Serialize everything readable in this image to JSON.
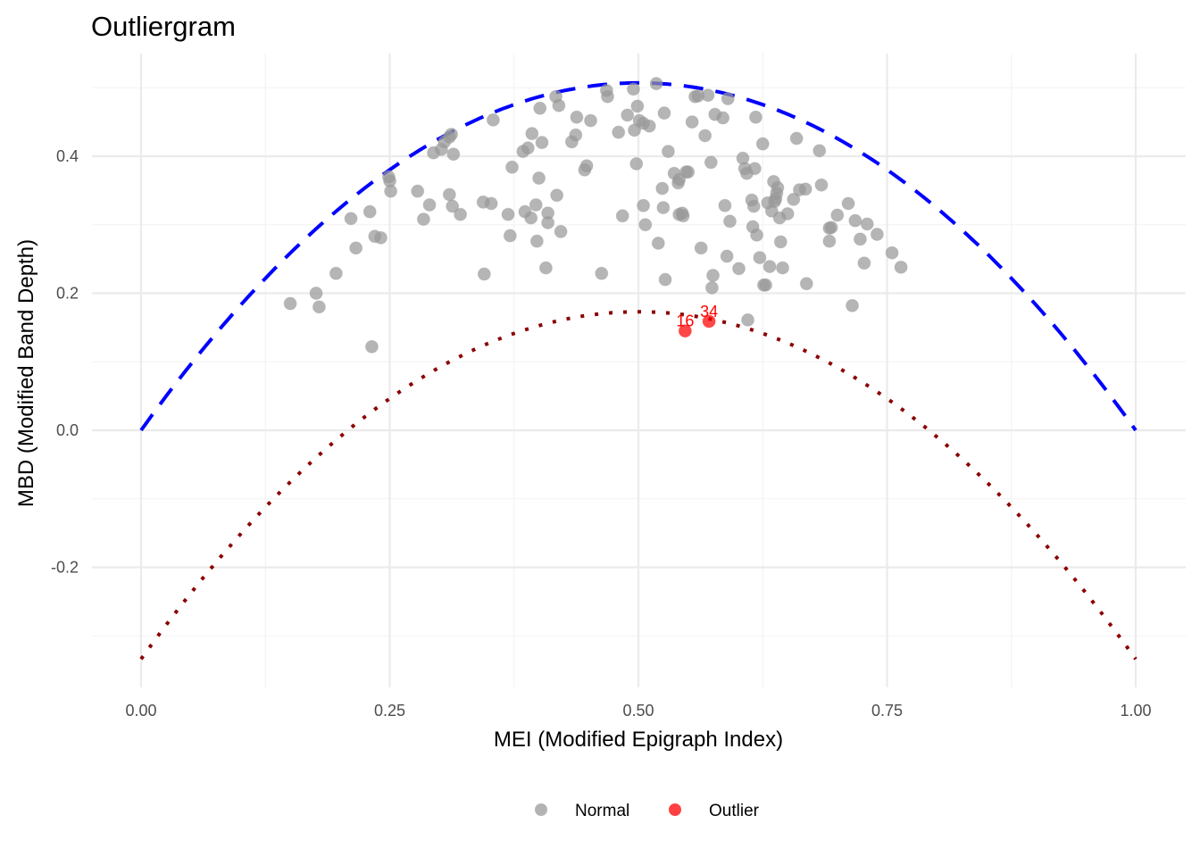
{
  "chart_data": {
    "type": "scatter",
    "title": "Outliergram",
    "xlabel": "MEI (Modified Epigraph Index)",
    "ylabel": "MBD (Modified Band Depth)",
    "xlim": [
      -0.05,
      1.05
    ],
    "ylim": [
      -0.37,
      0.54
    ],
    "x_ticks": [
      0.0,
      0.25,
      0.5,
      0.75,
      1.0
    ],
    "x_tick_labels": [
      "0.00",
      "0.25",
      "0.50",
      "0.75",
      "1.00"
    ],
    "y_ticks": [
      -0.2,
      0.0,
      0.2,
      0.4
    ],
    "y_tick_labels": [
      "-0.2",
      "0.0",
      "0.2",
      "0.4"
    ],
    "grid": true,
    "legend_position": "bottom",
    "legend": [
      {
        "label": "Normal",
        "color": "#999999"
      },
      {
        "label": "Outlier",
        "color": "#ff0000"
      }
    ],
    "curves": [
      {
        "name": "upper-parabola",
        "style": "dashed",
        "color": "#0000ff",
        "formula": "a0 + a1*t + a2*t^2",
        "coefficients": [
          0.0,
          2.028,
          -2.028
        ]
      },
      {
        "name": "lower-parabola",
        "style": "dotted",
        "color": "#8b0000",
        "formula": "a0 + a1*t + a2*t^2",
        "coefficients": [
          -0.334,
          2.028,
          -2.028
        ]
      }
    ],
    "series": [
      {
        "name": "Normal",
        "color": "#999999",
        "points": [
          [
            0.15,
            0.185
          ],
          [
            0.176,
            0.2
          ],
          [
            0.179,
            0.18
          ],
          [
            0.196,
            0.229
          ],
          [
            0.211,
            0.309
          ],
          [
            0.216,
            0.266
          ],
          [
            0.23,
            0.319
          ],
          [
            0.235,
            0.283
          ],
          [
            0.241,
            0.281
          ],
          [
            0.249,
            0.37
          ],
          [
            0.25,
            0.364
          ],
          [
            0.251,
            0.349
          ],
          [
            0.232,
            0.122
          ],
          [
            0.278,
            0.349
          ],
          [
            0.284,
            0.308
          ],
          [
            0.29,
            0.329
          ],
          [
            0.294,
            0.405
          ],
          [
            0.302,
            0.41
          ],
          [
            0.305,
            0.421
          ],
          [
            0.31,
            0.428
          ],
          [
            0.312,
            0.432
          ],
          [
            0.31,
            0.344
          ],
          [
            0.313,
            0.327
          ],
          [
            0.314,
            0.403
          ],
          [
            0.321,
            0.315
          ],
          [
            0.344,
            0.333
          ],
          [
            0.345,
            0.228
          ],
          [
            0.352,
            0.331
          ],
          [
            0.354,
            0.453
          ],
          [
            0.369,
            0.315
          ],
          [
            0.371,
            0.284
          ],
          [
            0.373,
            0.384
          ],
          [
            0.384,
            0.407
          ],
          [
            0.386,
            0.319
          ],
          [
            0.389,
            0.412
          ],
          [
            0.392,
            0.31
          ],
          [
            0.393,
            0.433
          ],
          [
            0.397,
            0.329
          ],
          [
            0.398,
            0.276
          ],
          [
            0.4,
            0.368
          ],
          [
            0.401,
            0.47
          ],
          [
            0.403,
            0.42
          ],
          [
            0.407,
            0.237
          ],
          [
            0.409,
            0.317
          ],
          [
            0.409,
            0.303
          ],
          [
            0.417,
            0.487
          ],
          [
            0.418,
            0.343
          ],
          [
            0.42,
            0.474
          ],
          [
            0.422,
            0.29
          ],
          [
            0.433,
            0.421
          ],
          [
            0.437,
            0.431
          ],
          [
            0.438,
            0.457
          ],
          [
            0.446,
            0.38
          ],
          [
            0.448,
            0.386
          ],
          [
            0.452,
            0.452
          ],
          [
            0.463,
            0.229
          ],
          [
            0.468,
            0.496
          ],
          [
            0.469,
            0.487
          ],
          [
            0.48,
            0.435
          ],
          [
            0.484,
            0.313
          ],
          [
            0.489,
            0.46
          ],
          [
            0.495,
            0.498
          ],
          [
            0.496,
            0.438
          ],
          [
            0.498,
            0.389
          ],
          [
            0.499,
            0.473
          ],
          [
            0.501,
            0.452
          ],
          [
            0.505,
            0.328
          ],
          [
            0.505,
            0.448
          ],
          [
            0.507,
            0.3
          ],
          [
            0.511,
            0.444
          ],
          [
            0.518,
            0.506
          ],
          [
            0.52,
            0.273
          ],
          [
            0.524,
            0.353
          ],
          [
            0.525,
            0.325
          ],
          [
            0.526,
            0.463
          ],
          [
            0.527,
            0.22
          ],
          [
            0.53,
            0.407
          ],
          [
            0.536,
            0.375
          ],
          [
            0.54,
            0.361
          ],
          [
            0.541,
            0.366
          ],
          [
            0.541,
            0.315
          ],
          [
            0.544,
            0.317
          ],
          [
            0.545,
            0.313
          ],
          [
            0.548,
            0.377
          ],
          [
            0.55,
            0.377
          ],
          [
            0.554,
            0.45
          ],
          [
            0.557,
            0.487
          ],
          [
            0.56,
            0.488
          ],
          [
            0.563,
            0.266
          ],
          [
            0.567,
            0.43
          ],
          [
            0.57,
            0.489
          ],
          [
            0.573,
            0.391
          ],
          [
            0.574,
            0.208
          ],
          [
            0.575,
            0.226
          ],
          [
            0.577,
            0.461
          ],
          [
            0.585,
            0.456
          ],
          [
            0.587,
            0.328
          ],
          [
            0.589,
            0.254
          ],
          [
            0.59,
            0.484
          ],
          [
            0.592,
            0.305
          ],
          [
            0.601,
            0.236
          ],
          [
            0.605,
            0.397
          ],
          [
            0.607,
            0.382
          ],
          [
            0.609,
            0.375
          ],
          [
            0.61,
            0.161
          ],
          [
            0.614,
            0.336
          ],
          [
            0.615,
            0.297
          ],
          [
            0.616,
            0.327
          ],
          [
            0.617,
            0.382
          ],
          [
            0.618,
            0.457
          ],
          [
            0.619,
            0.285
          ],
          [
            0.622,
            0.252
          ],
          [
            0.625,
            0.418
          ],
          [
            0.626,
            0.212
          ],
          [
            0.628,
            0.212
          ],
          [
            0.63,
            0.332
          ],
          [
            0.632,
            0.239
          ],
          [
            0.634,
            0.32
          ],
          [
            0.636,
            0.363
          ],
          [
            0.637,
            0.334
          ],
          [
            0.638,
            0.338
          ],
          [
            0.639,
            0.346
          ],
          [
            0.64,
            0.354
          ],
          [
            0.642,
            0.31
          ],
          [
            0.643,
            0.275
          ],
          [
            0.645,
            0.237
          ],
          [
            0.65,
            0.316
          ],
          [
            0.656,
            0.337
          ],
          [
            0.659,
            0.426
          ],
          [
            0.662,
            0.351
          ],
          [
            0.668,
            0.352
          ],
          [
            0.669,
            0.214
          ],
          [
            0.682,
            0.408
          ],
          [
            0.684,
            0.358
          ],
          [
            0.692,
            0.295
          ],
          [
            0.692,
            0.276
          ],
          [
            0.694,
            0.296
          ],
          [
            0.7,
            0.314
          ],
          [
            0.711,
            0.331
          ],
          [
            0.715,
            0.182
          ],
          [
            0.718,
            0.306
          ],
          [
            0.723,
            0.279
          ],
          [
            0.727,
            0.244
          ],
          [
            0.73,
            0.301
          ],
          [
            0.74,
            0.286
          ],
          [
            0.755,
            0.259
          ],
          [
            0.764,
            0.238
          ]
        ]
      },
      {
        "name": "Outlier",
        "color": "#ff0000",
        "points": [
          [
            0.547,
            0.145,
            "16"
          ],
          [
            0.571,
            0.159,
            "34"
          ]
        ]
      }
    ]
  }
}
